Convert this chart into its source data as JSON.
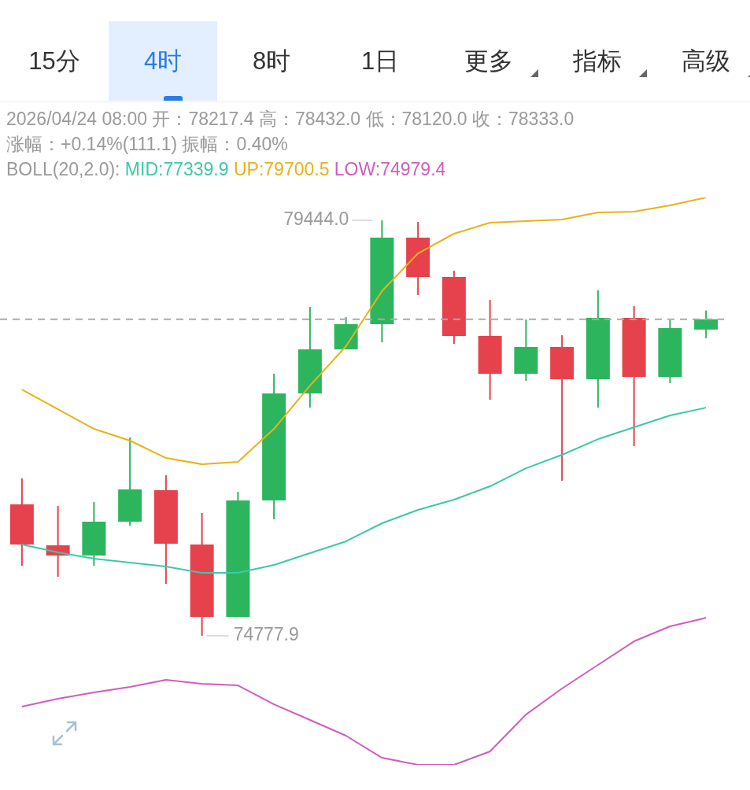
{
  "chart_data": [
    {
      "type": "other",
      "annotations": [
        "15分",
        "4时",
        "8时",
        "1日",
        "更多",
        "指标",
        "高级"
      ]
    },
    {
      "type": "candlestick",
      "title": "2026/04/24 08:00 开：78217.4 高：78432.0 低：78120.0 收：78333.0",
      "subtitle": "涨幅：+0.14%(111.1) 振幅：0.40%",
      "legend_title": "BOLL(20,2.0):",
      "legend": "top left",
      "categories": [
        null,
        null,
        null,
        null,
        null,
        null,
        null,
        null,
        null,
        null,
        null,
        null,
        null,
        null,
        null,
        null,
        null,
        null,
        null,
        null
      ],
      "ohlc": [
        [
          76254,
          76546,
          75565,
          75803
        ],
        [
          75794,
          76236,
          75441,
          75679
        ],
        [
          75679,
          76280,
          75565,
          76059
        ],
        [
          76059,
          77005,
          76015,
          76422
        ],
        [
          76413,
          76581,
          75361,
          75812
        ],
        [
          75803,
          76157,
          74777.9,
          74990
        ],
        [
          74990,
          76395,
          74990,
          76298
        ],
        [
          76298,
          77721,
          76086,
          77500
        ],
        [
          77500,
          78472,
          77341,
          77995
        ],
        [
          77995,
          78357,
          77995,
          78278
        ],
        [
          78278,
          79444.0,
          78074,
          79250
        ],
        [
          79250,
          79426,
          78604,
          78808
        ],
        [
          78808,
          78878,
          78057,
          78145
        ],
        [
          78145,
          78551,
          77429,
          77721
        ],
        [
          77721,
          78331,
          77641,
          78021
        ],
        [
          78021,
          78154,
          76519,
          77659
        ],
        [
          77659,
          78658,
          77341,
          78348
        ],
        [
          78348,
          78481,
          76908,
          77685
        ],
        [
          77685,
          78322,
          77615,
          78233
        ],
        [
          78217.4,
          78432.0,
          78120.0,
          78333.0
        ]
      ],
      "colors": [
        "#e5424d",
        "#e5424d",
        "#2db55d",
        "#2db55d",
        "#e5424d",
        "#e5424d",
        "#2db55d",
        "#2db55d",
        "#2db55d",
        "#2db55d",
        "#2db55d",
        "#e5424d",
        "#e5424d",
        "#e5424d",
        "#2db55d",
        "#e5424d",
        "#2db55d",
        "#e5424d",
        "#2db55d",
        "#2db55d"
      ],
      "series": [
        {
          "type": "line",
          "name": "MID:77339.9",
          "color": "#3cc8a8",
          "values": [
            75803,
            75715,
            75644,
            75600,
            75556,
            75485,
            75485,
            75573,
            75706,
            75839,
            76042,
            76192,
            76307,
            76457,
            76660,
            76811,
            76987,
            77120,
            77252,
            77339.9
          ]
        },
        {
          "type": "line",
          "name": "UP:79700.5",
          "color": "#e8b21a",
          "values": [
            77544,
            77323,
            77102,
            76970,
            76775,
            76705,
            76731,
            77102,
            77588,
            78030,
            78649,
            79073,
            79294,
            79417,
            79435,
            79453,
            79532,
            79541,
            79612,
            79700.5
          ]
        },
        {
          "type": "line",
          "name": "LOW:74979.4",
          "color": "#d05cc0",
          "values": [
            73983,
            74071,
            74142,
            74204,
            74283,
            74239,
            74221,
            74009,
            73833,
            73656,
            73408,
            73329,
            73329,
            73479,
            73894,
            74186,
            74451,
            74716,
            74884,
            74979.4
          ]
        }
      ],
      "ref_lines": [
        {
          "axis": "y",
          "value": 78333.0,
          "color": "#aaaaaa",
          "line_style": "dashed"
        }
      ],
      "annotations": [
        "79444.0",
        "74777.9"
      ]
    }
  ]
}
